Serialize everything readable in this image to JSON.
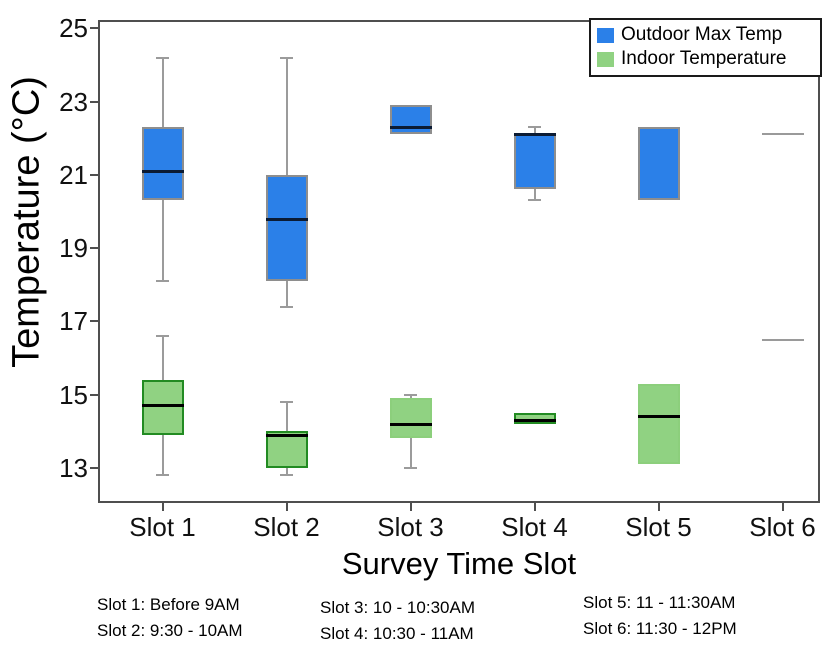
{
  "chart_data": {
    "type": "boxplot",
    "title": "",
    "xlabel": "Survey Time Slot",
    "ylabel": "Temperature (°C)",
    "y_ticks": [
      25,
      23,
      21,
      19,
      17,
      15,
      13
    ],
    "ylim": [
      12.0,
      25.2
    ],
    "grid": false,
    "categories": [
      "Slot 1",
      "Slot 2",
      "Slot 3",
      "Slot 4",
      "Slot 5",
      "Slot 6"
    ],
    "series": [
      {
        "name": "Outdoor Max Temp",
        "color": "#2b80e8",
        "edge": "#8e8e8e",
        "median_color": "#0b1b33",
        "boxes": [
          {
            "category": "Slot 1",
            "whisker_low": 18.1,
            "q1": 20.3,
            "median": 21.1,
            "q3": 22.3,
            "whisker_high": 24.2
          },
          {
            "category": "Slot 2",
            "whisker_low": 17.4,
            "q1": 18.1,
            "median": 19.8,
            "q3": 21.0,
            "whisker_high": 24.2
          },
          {
            "category": "Slot 3",
            "q1": 22.1,
            "median": 22.3,
            "q3": 22.9
          },
          {
            "category": "Slot 4",
            "whisker_low": 20.3,
            "q1": 20.6,
            "median": 22.1,
            "q3": 22.1,
            "whisker_high": 22.3
          },
          {
            "category": "Slot 5",
            "q1": 20.3,
            "q3": 22.3
          },
          {
            "category": "Slot 6",
            "value": 22.1
          }
        ]
      },
      {
        "name": "Indoor Temperature",
        "color": "#90d282",
        "edge": "#228b22",
        "median_color": "#000000",
        "boxes": [
          {
            "category": "Slot 1",
            "whisker_low": 12.8,
            "q1": 13.9,
            "median": 14.7,
            "q3": 15.4,
            "whisker_high": 16.6,
            "edge": "#228b22"
          },
          {
            "category": "Slot 2",
            "whisker_low": 12.8,
            "q1": 13.0,
            "median": 13.9,
            "q3": 14.0,
            "whisker_high": 14.8,
            "edge": "#228b22"
          },
          {
            "category": "Slot 3",
            "whisker_low": 13.0,
            "q1": 13.8,
            "median": 14.2,
            "q3": 14.9,
            "whisker_high": 15.0,
            "edge": "#8ccf7c"
          },
          {
            "category": "Slot 4",
            "q1": 14.2,
            "median": 14.3,
            "q3": 14.5,
            "edge": "#228b22"
          },
          {
            "category": "Slot 5",
            "q1": 13.1,
            "median": 14.4,
            "q3": 15.3,
            "edge": "#8ccf7c"
          },
          {
            "category": "Slot 6",
            "value": 16.5
          }
        ]
      }
    ],
    "legend": {
      "position": "top-right",
      "entries": [
        {
          "label": "Outdoor Max Temp",
          "color": "#2b80e8"
        },
        {
          "label": "Indoor Temperature",
          "color": "#90d282"
        }
      ]
    },
    "footnotes": {
      "col1": [
        "Slot 1: Before 9AM",
        "Slot 2: 9:30 - 10AM"
      ],
      "col2": [
        "Slot 3: 10 - 10:30AM",
        "Slot 4: 10:30 - 11AM"
      ],
      "col3": [
        "Slot 5: 11 - 11:30AM",
        "Slot 6: 11:30 - 12PM"
      ]
    }
  }
}
